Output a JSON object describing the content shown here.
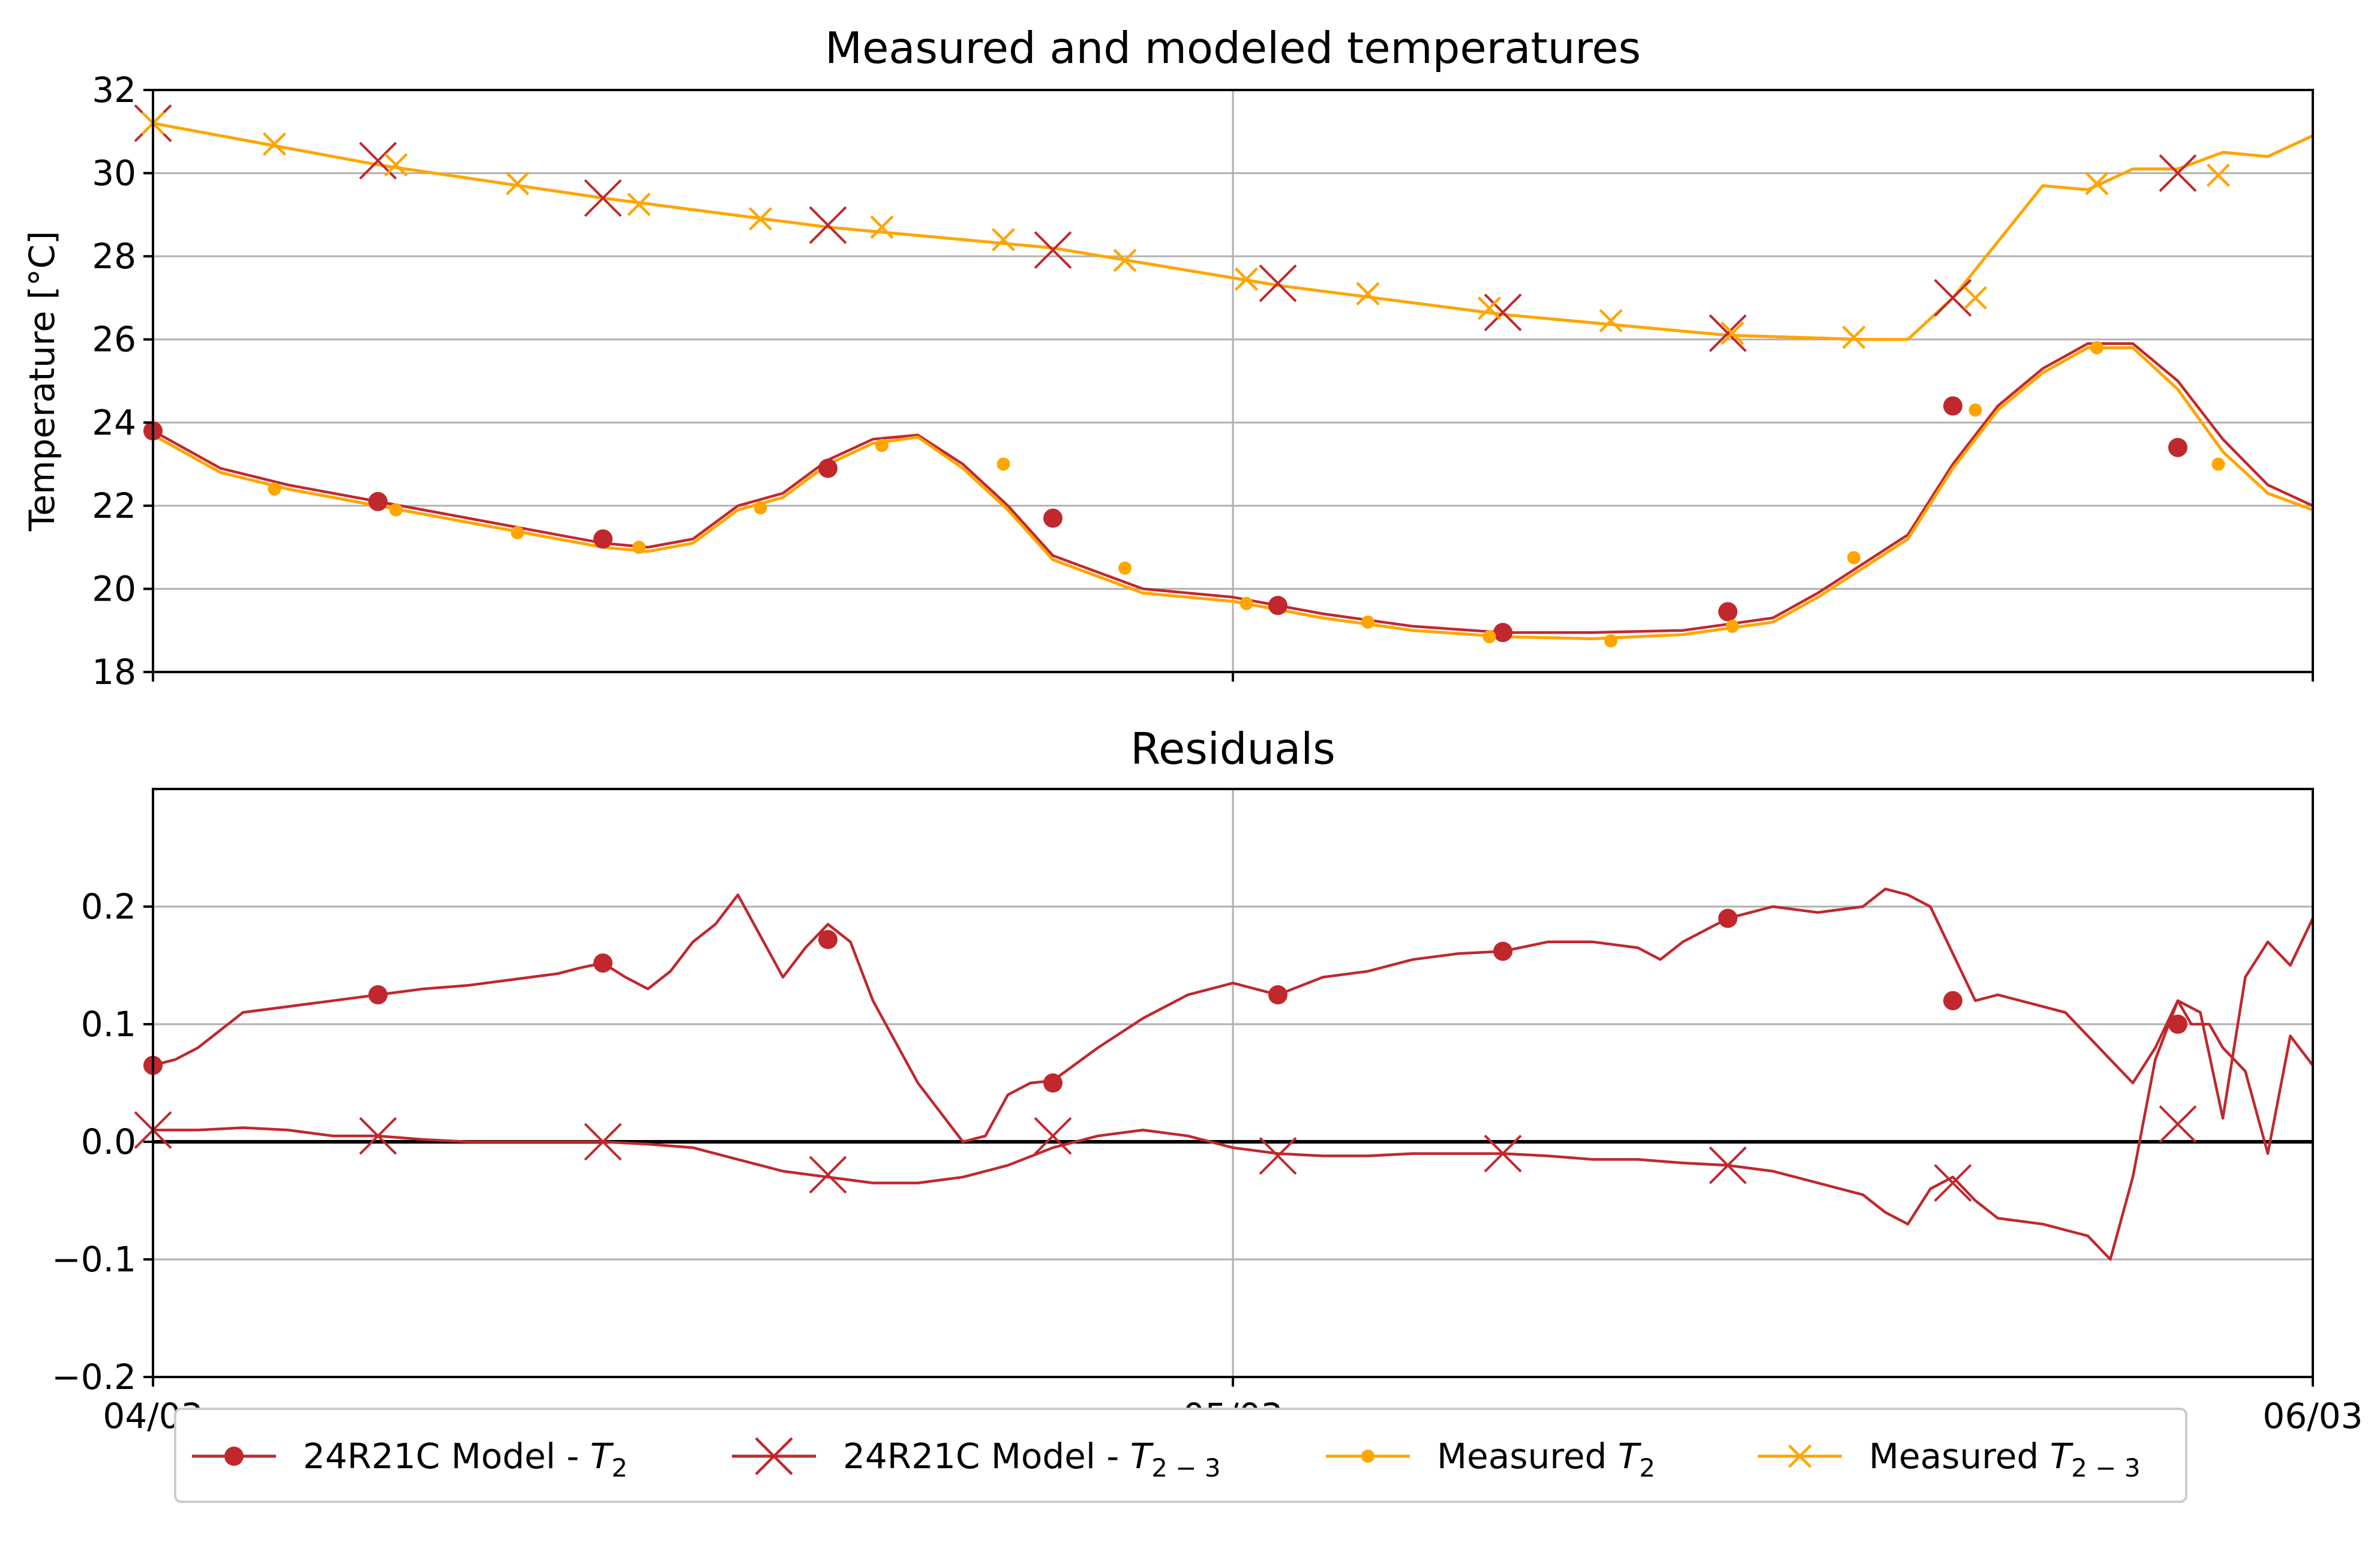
{
  "chart_data": [
    {
      "type": "line",
      "title": "Measured and modeled temperatures",
      "xlabel": "",
      "ylabel": "Temperature [°C]",
      "ylim": [
        18,
        32
      ],
      "xlim": [
        0,
        48
      ],
      "x_unit": "hours since 04/03 00:00",
      "yticks": [
        "18",
        "20",
        "22",
        "24",
        "26",
        "28",
        "30",
        "32"
      ],
      "ytick_values": [
        18,
        20,
        22,
        24,
        26,
        28,
        30,
        32
      ],
      "grid": true,
      "series": [
        {
          "name": "24R21C Model - T2",
          "color": "#c0282d",
          "marker": "circle-large",
          "x": [
            0,
            1.5,
            3,
            5,
            7,
            9,
            10,
            11,
            12,
            13,
            14,
            15,
            16,
            17,
            18,
            19,
            20,
            22,
            24,
            26,
            28,
            30,
            32,
            34,
            36,
            37,
            38,
            39,
            40,
            41,
            42,
            43,
            44,
            45,
            46,
            47,
            48
          ],
          "values": [
            23.8,
            22.9,
            22.5,
            22.1,
            21.7,
            21.3,
            21.1,
            21.0,
            21.2,
            22.0,
            22.3,
            23.1,
            23.6,
            23.7,
            23.0,
            22.0,
            20.8,
            20.0,
            19.8,
            19.4,
            19.1,
            18.95,
            18.95,
            19.0,
            19.3,
            19.9,
            20.6,
            21.3,
            23.0,
            24.4,
            25.3,
            25.9,
            25.9,
            25.0,
            23.6,
            22.5,
            22.0
          ],
          "marker_x": [
            0,
            5,
            10,
            15,
            20,
            25,
            30,
            35,
            40,
            45
          ],
          "marker_values": [
            23.8,
            22.1,
            21.2,
            22.9,
            21.7,
            19.6,
            18.95,
            19.45,
            24.4,
            23.4
          ]
        },
        {
          "name": "24R21C Model - T2-3",
          "color": "#c0282d",
          "marker": "x-large",
          "x": [
            0,
            5,
            10,
            15,
            20,
            25,
            30,
            35,
            38,
            39,
            40,
            42,
            43,
            44,
            45,
            46,
            47,
            48
          ],
          "values": [
            31.2,
            30.2,
            29.4,
            28.7,
            28.2,
            27.3,
            26.6,
            26.1,
            26.0,
            26.0,
            27.0,
            29.7,
            29.6,
            30.1,
            30.1,
            30.5,
            30.4,
            30.9
          ],
          "marker_x": [
            0,
            5,
            10,
            15,
            20,
            25,
            30,
            35,
            40,
            45
          ],
          "marker_values": [
            31.2,
            30.3,
            29.4,
            28.75,
            28.15,
            27.35,
            26.65,
            26.15,
            27.0,
            30.0
          ]
        },
        {
          "name": "Measured T2",
          "color": "#ffa500",
          "marker": "circle-small",
          "x": [
            0,
            1.5,
            3,
            5,
            7,
            9,
            10,
            11,
            12,
            13,
            14,
            15,
            16,
            17,
            18,
            19,
            20,
            22,
            24,
            26,
            28,
            30,
            32,
            34,
            36,
            37,
            38,
            39,
            40,
            41,
            42,
            43,
            44,
            45,
            46,
            47,
            48
          ],
          "values": [
            23.7,
            22.8,
            22.4,
            22.0,
            21.6,
            21.2,
            21.0,
            20.9,
            21.1,
            21.9,
            22.2,
            23.0,
            23.5,
            23.65,
            22.9,
            21.9,
            20.7,
            19.9,
            19.7,
            19.3,
            19.0,
            18.85,
            18.8,
            18.9,
            19.2,
            19.8,
            20.5,
            21.2,
            22.9,
            24.3,
            25.2,
            25.8,
            25.8,
            24.8,
            23.3,
            22.3,
            21.9
          ],
          "marker_x": [
            2.7,
            5.4,
            8.1,
            10.8,
            13.5,
            16.2,
            18.9,
            21.6,
            24.3,
            27,
            29.7,
            32.4,
            35.1,
            37.8,
            40.5,
            43.2,
            45.9
          ],
          "marker_values": [
            22.4,
            21.9,
            21.35,
            21.0,
            21.95,
            23.45,
            23.0,
            20.5,
            19.65,
            19.2,
            18.85,
            18.75,
            19.1,
            20.75,
            24.3,
            25.8,
            23.0
          ]
        },
        {
          "name": "Measured T2-3",
          "color": "#ffa500",
          "marker": "x-small",
          "x": [
            0,
            5,
            10,
            15,
            20,
            25,
            30,
            35,
            38,
            39,
            40,
            42,
            43,
            44,
            45,
            46,
            47,
            48
          ],
          "values": [
            31.2,
            30.2,
            29.4,
            28.7,
            28.2,
            27.3,
            26.6,
            26.1,
            26.0,
            26.0,
            27.0,
            29.7,
            29.6,
            30.1,
            30.1,
            30.5,
            30.4,
            30.9
          ],
          "marker_x": [
            0,
            2.7,
            5.4,
            8.1,
            10.8,
            13.5,
            16.2,
            18.9,
            21.6,
            24.3,
            27,
            29.7,
            32.4,
            35.1,
            37.8,
            40.5,
            43.2,
            45.9
          ],
          "marker_values": [
            31.2,
            30.7,
            30.2,
            29.75,
            29.25,
            28.9,
            28.7,
            28.4,
            27.9,
            27.45,
            27.1,
            26.75,
            26.45,
            26.15,
            26.05,
            27.0,
            29.75,
            29.95
          ]
        }
      ]
    },
    {
      "type": "line",
      "title": "Residuals",
      "xlabel": "",
      "ylabel": "",
      "ylim": [
        -0.2,
        0.3
      ],
      "xlim": [
        0,
        48
      ],
      "yticks": [
        "−0.2",
        "−0.1",
        "0.0",
        "0.1",
        "0.2"
      ],
      "ytick_values": [
        -0.2,
        -0.1,
        0.0,
        0.1,
        0.2
      ],
      "xticks": [
        "04/03",
        "05/03",
        "06/03"
      ],
      "xtick_values": [
        0,
        24,
        48
      ],
      "zero_line": true,
      "grid": true,
      "series": [
        {
          "name": "24R21C Model - T2",
          "color": "#c0282d",
          "marker": "circle-large",
          "x": [
            0,
            0.5,
            1,
            1.5,
            2,
            3,
            4,
            5,
            6,
            7,
            8,
            9,
            9.5,
            10,
            10.5,
            11,
            11.5,
            12,
            12.5,
            13,
            13.5,
            14,
            14.5,
            15,
            15.5,
            16,
            17,
            18,
            18.5,
            19,
            19.5,
            20,
            21,
            22,
            23,
            24,
            25,
            26,
            27,
            28,
            29,
            30,
            31,
            32,
            33,
            33.5,
            34,
            35,
            36,
            37,
            38,
            38.5,
            39,
            39.5,
            40,
            40.5,
            41,
            42,
            42.5,
            43,
            43.5,
            44,
            44.5,
            45,
            45.3,
            45.7,
            46,
            46.5,
            47,
            47.5,
            48
          ],
          "values": [
            0.065,
            0.07,
            0.08,
            0.095,
            0.11,
            0.115,
            0.12,
            0.125,
            0.13,
            0.133,
            0.138,
            0.143,
            0.148,
            0.152,
            0.14,
            0.13,
            0.145,
            0.17,
            0.185,
            0.21,
            0.175,
            0.14,
            0.165,
            0.185,
            0.17,
            0.12,
            0.05,
            0.0,
            0.005,
            0.04,
            0.05,
            0.052,
            0.08,
            0.105,
            0.125,
            0.135,
            0.125,
            0.14,
            0.145,
            0.155,
            0.16,
            0.162,
            0.17,
            0.17,
            0.165,
            0.155,
            0.17,
            0.19,
            0.2,
            0.195,
            0.2,
            0.215,
            0.21,
            0.2,
            0.16,
            0.12,
            0.125,
            0.115,
            0.11,
            0.09,
            0.07,
            0.05,
            0.08,
            0.12,
            0.1,
            0.1,
            0.08,
            0.06,
            -0.01,
            0.09,
            0.065
          ],
          "marker_x": [
            0,
            5,
            10,
            15,
            20,
            25,
            30,
            35,
            40,
            45
          ],
          "marker_values": [
            0.065,
            0.125,
            0.152,
            0.172,
            0.05,
            0.125,
            0.162,
            0.19,
            0.12,
            0.1
          ]
        },
        {
          "name": "24R21C Model - T2-3",
          "color": "#c0282d",
          "marker": "x-large",
          "x": [
            0,
            1,
            2,
            3,
            4,
            5,
            6,
            7,
            8,
            9,
            10,
            11,
            12,
            13,
            14,
            15,
            16,
            17,
            18,
            19,
            20,
            21,
            22,
            23,
            24,
            25,
            26,
            27,
            28,
            29,
            30,
            31,
            32,
            33,
            34,
            35,
            36,
            37,
            38,
            38.5,
            39,
            39.5,
            40,
            40.5,
            41,
            42,
            42.5,
            43,
            43.5,
            44,
            44.5,
            45,
            45.5,
            46,
            46.5,
            47,
            47.5,
            48
          ],
          "values": [
            0.01,
            0.01,
            0.012,
            0.01,
            0.005,
            0.005,
            0.002,
            0.0,
            0.0,
            0.0,
            0.0,
            -0.002,
            -0.005,
            -0.015,
            -0.025,
            -0.03,
            -0.035,
            -0.035,
            -0.03,
            -0.02,
            -0.005,
            0.005,
            0.01,
            0.005,
            -0.005,
            -0.01,
            -0.012,
            -0.012,
            -0.01,
            -0.01,
            -0.01,
            -0.012,
            -0.015,
            -0.015,
            -0.018,
            -0.02,
            -0.025,
            -0.035,
            -0.045,
            -0.06,
            -0.07,
            -0.04,
            -0.03,
            -0.05,
            -0.065,
            -0.07,
            -0.075,
            -0.08,
            -0.1,
            -0.03,
            0.07,
            0.12,
            0.11,
            0.02,
            0.14,
            0.17,
            0.15,
            0.19
          ],
          "marker_x": [
            0,
            5,
            10,
            15,
            20,
            25,
            30,
            35,
            40,
            45
          ],
          "marker_values": [
            0.01,
            0.005,
            0.0,
            -0.028,
            0.005,
            -0.012,
            -0.01,
            -0.02,
            -0.035,
            0.015
          ]
        }
      ]
    }
  ],
  "legend": {
    "items": [
      {
        "label_prefix": "24R21C Model - ",
        "var": "T",
        "sub": "2",
        "marker": "circle-large",
        "color": "#c0282d"
      },
      {
        "label_prefix": "24R21C Model - ",
        "var": "T",
        "sub": "2 − 3",
        "marker": "x-large",
        "color": "#c0282d"
      },
      {
        "label_prefix": "Measured ",
        "var": "T",
        "sub": "2",
        "marker": "circle-small",
        "color": "#ffa500"
      },
      {
        "label_prefix": "Measured ",
        "var": "T",
        "sub": "2 − 3",
        "marker": "x-small",
        "color": "#ffa500"
      }
    ],
    "placement": "bottom-center"
  },
  "colors": {
    "model": "#c0282d",
    "measured": "#ffa500",
    "grid": "#b0b0b0"
  }
}
